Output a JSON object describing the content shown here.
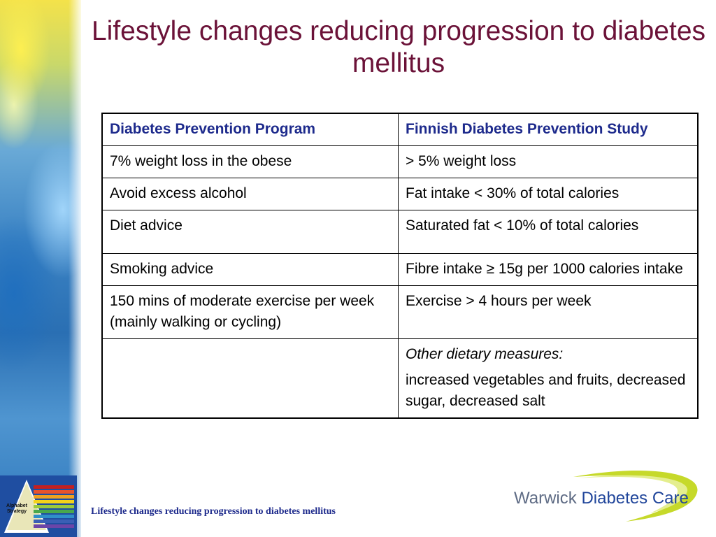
{
  "slide": {
    "title": "Lifestyle changes reducing progression to diabetes mellitus",
    "footer": "Lifestyle changes reducing progression to diabetes mellitus"
  },
  "table": {
    "headers": [
      "Diabetes Prevention Program",
      "Finnish Diabetes Prevention Study"
    ],
    "rows": [
      [
        "7% weight loss in the obese",
        "> 5% weight loss"
      ],
      [
        "Avoid excess alcohol",
        "Fat intake < 30% of total calories"
      ],
      [
        "Diet advice",
        "Saturated fat < 10% of total calories"
      ],
      [
        "Smoking advice",
        "Fibre intake ≥ 15g per 1000 calories intake"
      ],
      [
        "150 mins of moderate exercise per week (mainly walking or cycling)",
        "Exercise > 4 hours per week"
      ]
    ],
    "last_row": {
      "col1": "",
      "col2_italic": "Other dietary measures:",
      "col2_text": "increased vegetables and fruits, decreased sugar, decreased salt"
    }
  },
  "badge": {
    "label_line1": "Alphabet",
    "label_line2": "Strategy",
    "icon": "pyramid-icon"
  },
  "logo": {
    "part1": "Warwick",
    "part2": "Diabetes Care",
    "icon": "swoosh-icon"
  },
  "colors": {
    "title": "#6b1238",
    "header_text": "#1d2a8c",
    "footer_text": "#1d2a8c",
    "logo_swoosh": "#c6d92a",
    "logo_blue": "#21469b"
  }
}
